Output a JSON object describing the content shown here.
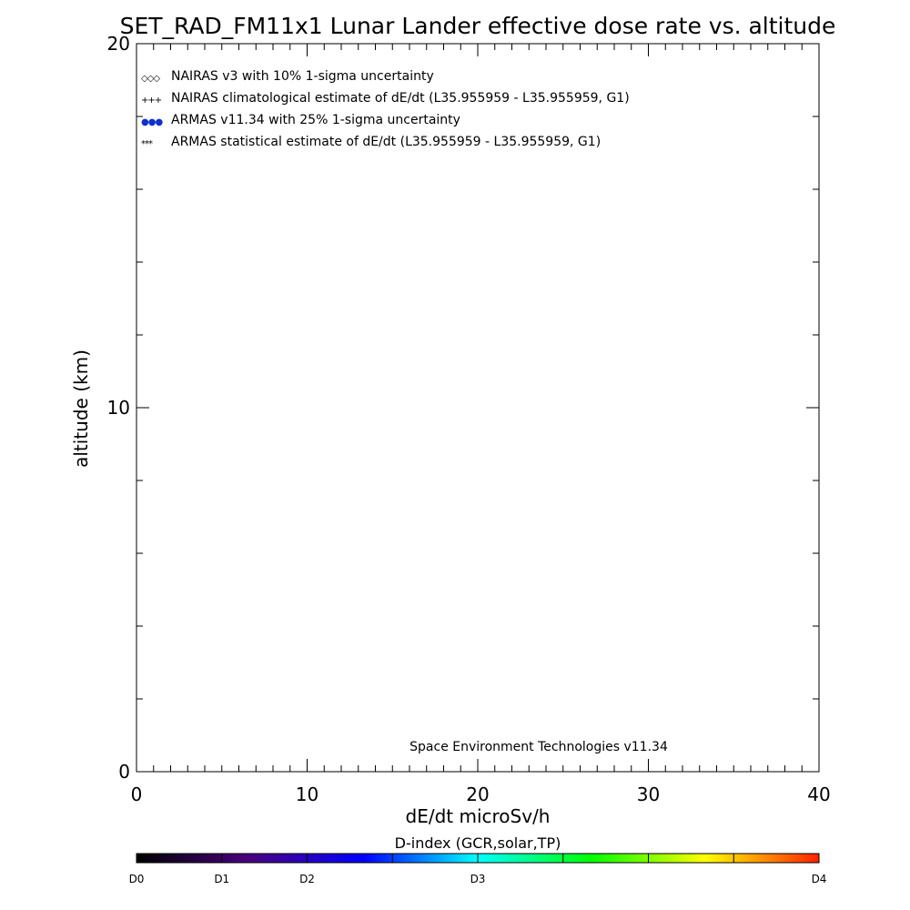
{
  "chart_data": {
    "type": "scatter",
    "title": "SET_RAD_FM11x1  Lunar Lander effective dose rate vs. altitude",
    "xlabel": "dE/dt microSv/h",
    "ylabel": "altitude (km)",
    "xlim": [
      0,
      40
    ],
    "ylim": [
      0,
      20
    ],
    "xticks": [
      0,
      10,
      20,
      30,
      40
    ],
    "xtick_labels": [
      "0",
      "10",
      "20",
      "30",
      "40"
    ],
    "x_minor_step": 1,
    "yticks": [
      0,
      10,
      20
    ],
    "ytick_labels": [
      "0",
      "10",
      "20"
    ],
    "y_minor_step": 2,
    "grid": false,
    "legend_position": "top-left",
    "series": [
      {
        "name": "NAIRAS v3 with 10% 1-sigma uncertainty",
        "marker": "diamond",
        "marker_glyph": "◇◇◇",
        "color": "#000000",
        "values": []
      },
      {
        "name": "NAIRAS climatological estimate of dE/dt (L35.955959 - L35.955959, G1)",
        "marker": "plus",
        "marker_glyph": "+++",
        "color": "#000000",
        "values": []
      },
      {
        "name": "ARMAS v11.34 with 25% 1-sigma uncertainty",
        "marker": "filled-circle",
        "marker_glyph": "●●●",
        "color": "#1030d0",
        "values": []
      },
      {
        "name": "ARMAS statistical estimate of dE/dt (L35.955959 - L35.955959, G1)",
        "marker": "asterisk",
        "marker_glyph": "***",
        "color": "#000000",
        "values": []
      }
    ],
    "annotation": "Space Environment Technologies v11.34",
    "colorbar": {
      "title": "D-index (GCR,solar,TP)",
      "labels": [
        "D0",
        "D1",
        "D2",
        "D3",
        "D4"
      ],
      "label_values": [
        0,
        0.125,
        0.25,
        0.5,
        1
      ],
      "tick_values": [
        0.125,
        0.25,
        0.375,
        0.5,
        0.625,
        0.75,
        0.875
      ],
      "colors": [
        "#000000",
        "#4b0082",
        "#0000ff",
        "#00ffff",
        "#00ff00",
        "#ffff00",
        "#ff2000"
      ]
    }
  }
}
